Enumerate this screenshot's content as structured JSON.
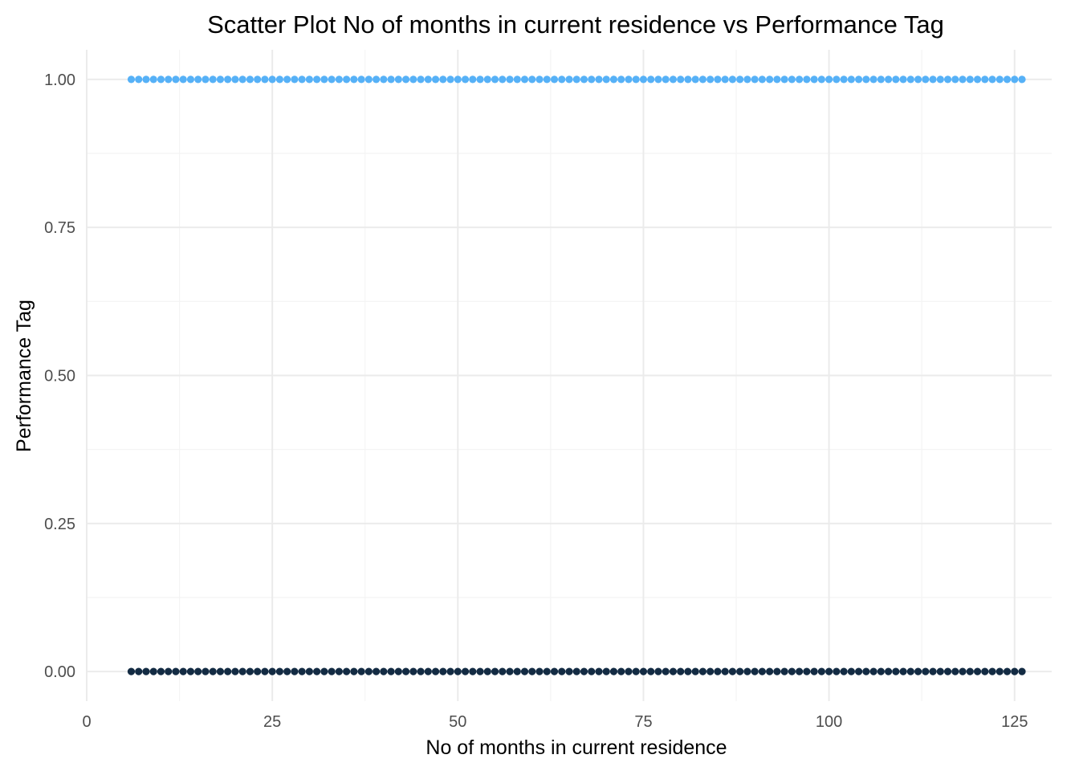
{
  "chart_data": {
    "type": "scatter",
    "title": "Scatter Plot No of months in current residence vs Performance Tag",
    "xlabel": "No of months in current residence",
    "ylabel": "Performance Tag",
    "xlim": [
      0,
      130
    ],
    "ylim": [
      -0.05,
      1.05
    ],
    "x_ticks": [
      0,
      25,
      50,
      75,
      100,
      125
    ],
    "x_tick_labels": [
      "0",
      "25",
      "50",
      "75",
      "100",
      "125"
    ],
    "y_ticks": [
      0,
      0.25,
      0.5,
      0.75,
      1
    ],
    "y_tick_labels": [
      "0.00",
      "0.25",
      "0.50",
      "0.75",
      "1.00"
    ],
    "grid": true,
    "legend": "none",
    "series": [
      {
        "y": 1,
        "x_range": [
          6,
          126
        ],
        "color": "#56b1f7"
      },
      {
        "y": 0,
        "x_range": [
          6,
          126
        ],
        "color": "#132b43"
      }
    ]
  },
  "colors": {
    "grid_major": "#ebebeb",
    "grid_minor": "#f4f4f4",
    "tick_text": "#4d4d4d"
  }
}
